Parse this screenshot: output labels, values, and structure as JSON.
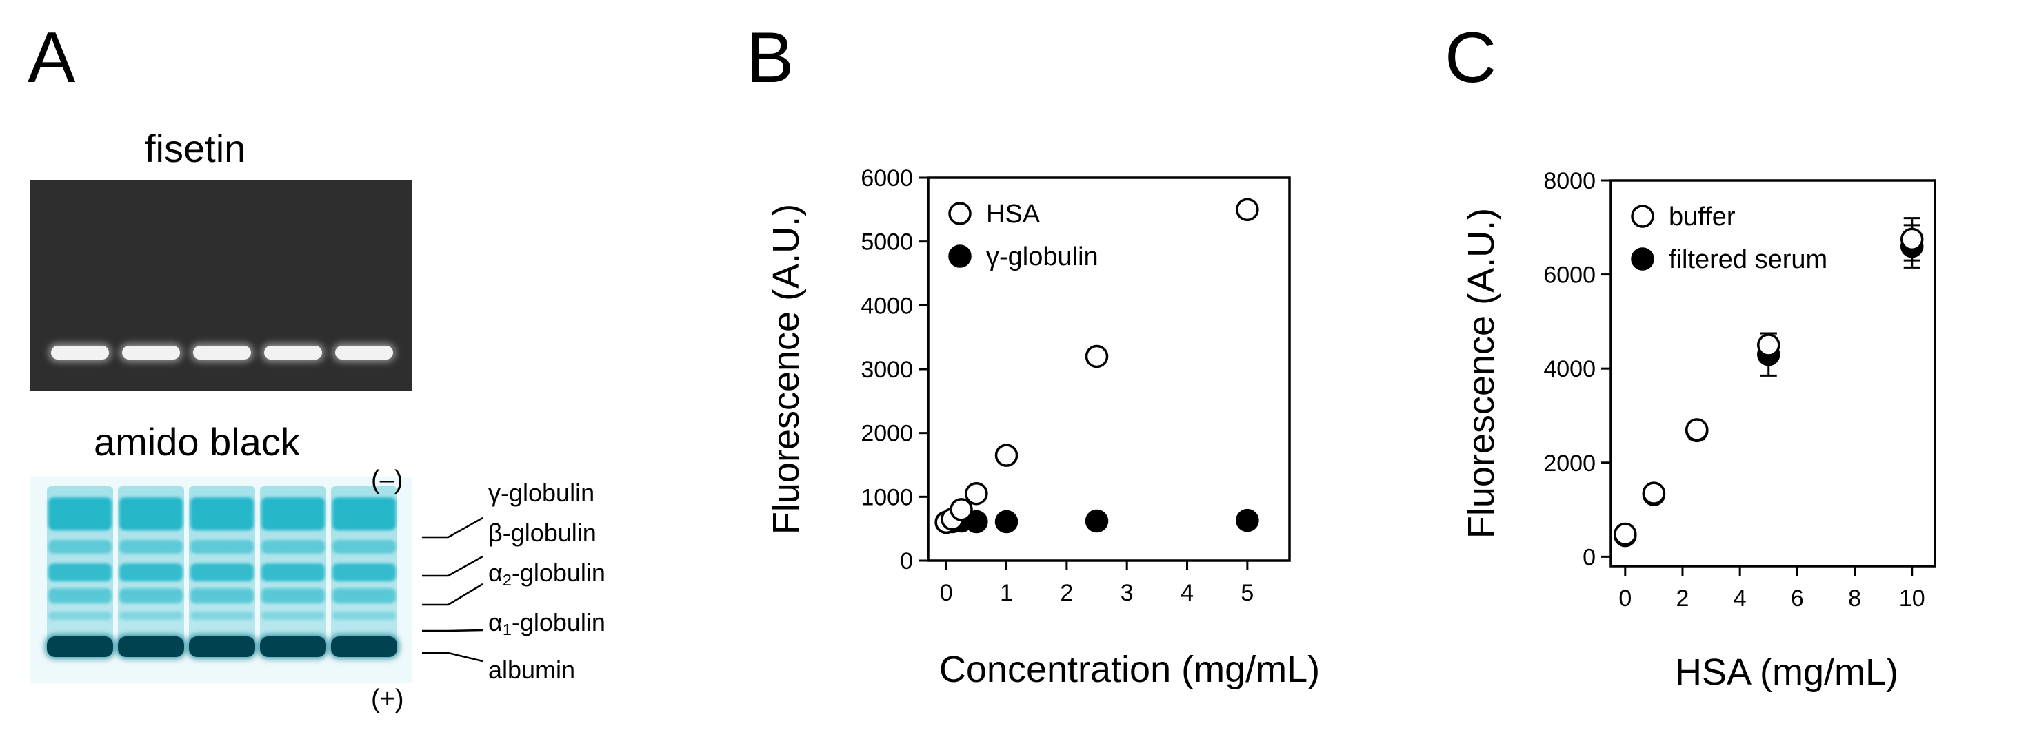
{
  "panels": {
    "A": {
      "letter": "A",
      "fisetin_title": "fisetin",
      "amido_title": "amido black",
      "minus_label": "(–)",
      "plus_label": "(+)",
      "bands": [
        {
          "greek": "γ",
          "sub": "",
          "name": "-globulin"
        },
        {
          "greek": "β",
          "sub": "",
          "name": "-globulin"
        },
        {
          "greek": "α",
          "sub": "2",
          "name": "-globulin"
        },
        {
          "greek": "α",
          "sub": "1",
          "name": "-globulin"
        },
        {
          "greek": "",
          "sub": "",
          "name": "albumin"
        }
      ],
      "lane_count": 5,
      "colors": {
        "fisetin_bg": "#2e2e2e",
        "fisetin_band": "#f2f2f2",
        "amido_band": "#1fb5c8",
        "amido_dark": "#00424f"
      }
    },
    "B": {
      "letter": "B"
    },
    "C": {
      "letter": "C"
    }
  },
  "chart_data": [
    {
      "panel": "B",
      "type": "scatter",
      "xlabel": "Concentration (mg/mL)",
      "ylabel": "Fluorescence (A.U.)",
      "xlim": [
        -0.3,
        5.7
      ],
      "ylim": [
        0,
        6000
      ],
      "xticks": [
        0,
        1,
        2,
        3,
        4,
        5
      ],
      "yticks": [
        0,
        1000,
        2000,
        3000,
        4000,
        5000,
        6000
      ],
      "legend_position": "top-left",
      "grid": false,
      "series": [
        {
          "name": "HSA",
          "marker": "open-circle",
          "x": [
            0,
            0.1,
            0.25,
            0.5,
            1,
            2.5,
            5
          ],
          "y": [
            600,
            650,
            800,
            1050,
            1650,
            3200,
            5500
          ]
        },
        {
          "name": "γ-globulin",
          "marker": "filled-circle",
          "x": [
            0,
            0.1,
            0.25,
            0.5,
            1,
            2.5,
            5
          ],
          "y": [
            600,
            610,
            620,
            610,
            610,
            620,
            630
          ]
        }
      ]
    },
    {
      "panel": "C",
      "type": "scatter",
      "xlabel": "HSA (mg/mL)",
      "ylabel": "Fluorescence (A.U.)",
      "xlim": [
        -0.5,
        10.8
      ],
      "ylim": [
        -200,
        8000
      ],
      "xticks": [
        0,
        2,
        4,
        6,
        8,
        10
      ],
      "yticks": [
        0,
        2000,
        4000,
        6000,
        8000
      ],
      "legend_position": "top-left",
      "grid": false,
      "series": [
        {
          "name": "buffer",
          "marker": "open-circle",
          "x": [
            0,
            1,
            2.5,
            5,
            10
          ],
          "y": [
            480,
            1350,
            2700,
            4500,
            6750
          ],
          "err": [
            60,
            80,
            150,
            250,
            450
          ]
        },
        {
          "name": "filtered serum",
          "marker": "filled-circle",
          "x": [
            0,
            1,
            2.5,
            5,
            10
          ],
          "y": [
            450,
            1320,
            2680,
            4300,
            6600
          ],
          "err": [
            60,
            90,
            180,
            450,
            450
          ]
        }
      ]
    }
  ]
}
